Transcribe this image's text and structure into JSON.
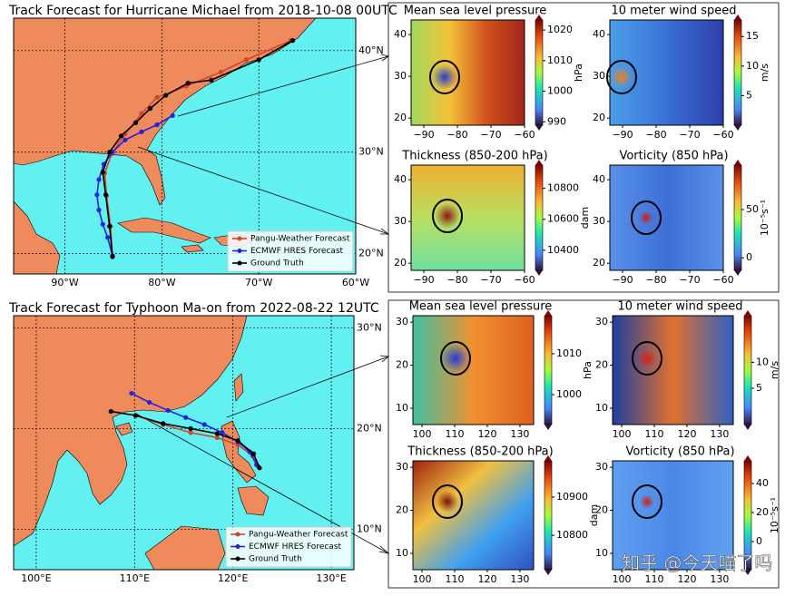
{
  "cases": [
    {
      "title": "Track Forecast for Hurricane Michael from 2018-10-08 00UTC",
      "map": {
        "xlim": [
          -95.3,
          -60
        ],
        "ylim": [
          18,
          43.2
        ],
        "xticks": [
          {
            "value": -90,
            "label": "90°W"
          },
          {
            "value": -80,
            "label": "80°W"
          },
          {
            "value": -70,
            "label": "70°W"
          },
          {
            "value": -60,
            "label": "60°W"
          }
        ],
        "yticks": [
          {
            "value": 40,
            "label": "40°N"
          },
          {
            "value": 30,
            "label": "30°N"
          },
          {
            "value": 20,
            "label": "20°N"
          }
        ],
        "legend": "lower right",
        "series": [
          {
            "name": "Pangu-Weather Forecast",
            "color": "#d2472a",
            "x": [
              -85.1,
              -85.3,
              -85.7,
              -85.9,
              -85.2,
              -83.8,
              -82.1,
              -80.5,
              -77.5,
              -73.9,
              -71.3,
              -66.7
            ],
            "y": [
              19.8,
              22.7,
              25.7,
              27.9,
              29.8,
              31.8,
              33.8,
              35.4,
              36.5,
              37.9,
              39.1,
              41.0
            ]
          },
          {
            "name": "ECMWF HRES Forecast",
            "color": "#2222e0",
            "x": [
              -85.1,
              -85.6,
              -86.1,
              -86.5,
              -86.7,
              -86.5,
              -86.0,
              -85.1,
              -83.8,
              -82.1,
              -80.5,
              -78.9
            ],
            "y": [
              19.8,
              21.6,
              22.9,
              24.3,
              25.8,
              27.3,
              28.8,
              30.0,
              31.2,
              32.0,
              32.7,
              33.6
            ]
          },
          {
            "name": "Ground Truth",
            "color": "#000000",
            "x": [
              -85.1,
              -85.4,
              -85.8,
              -86.1,
              -85.4,
              -84.2,
              -82.7,
              -81.2,
              -79.6,
              -77.3,
              -74.9,
              -70.0,
              -66.5
            ],
            "y": [
              19.7,
              22.7,
              25.8,
              28.0,
              30.0,
              31.6,
              32.9,
              34.3,
              35.6,
              36.8,
              37.1,
              39.1,
              41.0
            ]
          }
        ]
      },
      "fields": [
        {
          "title": "Mean sea level pressure",
          "xlim": [
            -93.8,
            -60
          ],
          "ylim": [
            18.3,
            43.5
          ],
          "xticks": [
            {
              "value": -90,
              "label": "−90"
            },
            {
              "value": -80,
              "label": "−80"
            },
            {
              "value": -70,
              "label": "−70"
            },
            {
              "value": -60,
              "label": "−60"
            }
          ],
          "yticks": [
            40,
            30,
            20
          ],
          "colorbar": {
            "label": "hPa",
            "clim": [
              988.9,
              1023.3
            ],
            "ticks": [
              1020,
              1010,
              1000,
              990
            ]
          }
        },
        {
          "title": "10 meter wind speed",
          "xlim": [
            -93.8,
            -60
          ],
          "ylim": [
            18.3,
            43.5
          ],
          "xticks": [
            {
              "value": -90,
              "label": "−90"
            },
            {
              "value": -80,
              "label": "−80"
            },
            {
              "value": -70,
              "label": "−70"
            },
            {
              "value": -60,
              "label": "−60"
            }
          ],
          "yticks": [
            40,
            30,
            20
          ],
          "colorbar": {
            "label": "m/s",
            "clim": [
              0,
              17.8
            ],
            "ticks": [
              15,
              10,
              5
            ]
          }
        },
        {
          "title": "Thickness (850-200 hPa)",
          "xlim": [
            -93.8,
            -60
          ],
          "ylim": [
            18.3,
            43.5
          ],
          "xticks": [
            {
              "value": -90,
              "label": "−90"
            },
            {
              "value": -80,
              "label": "−80"
            },
            {
              "value": -70,
              "label": "−70"
            },
            {
              "value": -60,
              "label": "−60"
            }
          ],
          "yticks": [
            40,
            30,
            20
          ],
          "colorbar": {
            "label": "dam",
            "clim": [
              10270,
              10950
            ],
            "ticks": [
              10800,
              10600,
              10400
            ]
          }
        },
        {
          "title": "Vorticity (850 hPa)",
          "xlim": [
            -93.8,
            -60
          ],
          "ylim": [
            18.3,
            43.5
          ],
          "xticks": [
            {
              "value": -90,
              "label": "−90"
            },
            {
              "value": -80,
              "label": "−80"
            },
            {
              "value": -70,
              "label": "−70"
            },
            {
              "value": -60,
              "label": "−60"
            }
          ],
          "yticks": [
            40,
            30,
            20
          ],
          "colorbar": {
            "label": "10⁻⁵s⁻¹",
            "clim": [
              -13,
              96
            ],
            "ticks": [
              50,
              0
            ]
          }
        }
      ]
    },
    {
      "title": "Track Forecast for Typhoon Ma-on from 2022-08-22 12UTC",
      "map": {
        "xlim": [
          97.7,
          132.3
        ],
        "ylim": [
          6,
          31.2
        ],
        "xticks": [
          {
            "value": 100,
            "label": "100°E"
          },
          {
            "value": 110,
            "label": "110°E"
          },
          {
            "value": 120,
            "label": "120°E"
          },
          {
            "value": 130,
            "label": "130°E"
          }
        ],
        "yticks": [
          {
            "value": 30,
            "label": "30°N"
          },
          {
            "value": 20,
            "label": "20°N"
          },
          {
            "value": 10,
            "label": "10°N"
          }
        ],
        "legend": "lower right",
        "series": [
          {
            "name": "Pangu-Weather Forecast",
            "color": "#d2472a",
            "x": [
              107.6,
              110.1,
              112.9,
              115.7,
              118.4,
              120.5,
              122.0,
              122.6
            ],
            "y": [
              21.7,
              21.3,
              20.4,
              19.6,
              19.1,
              18.4,
              17.3,
              16.2
            ]
          },
          {
            "name": "ECMWF HRES Forecast",
            "color": "#2222e0",
            "x": [
              109.7,
              111.5,
              113.4,
              115.2,
              117.1,
              118.9,
              120.5,
              121.7,
              122.4
            ],
            "y": [
              23.5,
              22.6,
              21.8,
              21.1,
              20.4,
              19.6,
              18.7,
              17.7,
              16.4
            ]
          },
          {
            "name": "Ground Truth",
            "color": "#000000",
            "x": [
              107.6,
              110.1,
              112.9,
              115.7,
              118.4,
              120.5,
              122.1,
              122.7
            ],
            "y": [
              21.7,
              21.3,
              20.5,
              20.0,
              19.5,
              18.8,
              17.5,
              16.1
            ]
          }
        ]
      },
      "fields": [
        {
          "title": "Mean sea level pressure",
          "xlim": [
            97.2,
            134.2
          ],
          "ylim": [
            6.2,
            31.5
          ],
          "xticks": [
            100,
            110,
            120,
            130
          ],
          "yticks": [
            30,
            20,
            10
          ],
          "colorbar": {
            "label": "hPa",
            "clim": [
              992.7,
              1019.3
            ],
            "ticks": [
              1010,
              1000
            ]
          }
        },
        {
          "title": "10 meter wind speed",
          "xlim": [
            97.2,
            134.2
          ],
          "ylim": [
            6.2,
            31.5
          ],
          "xticks": [
            100,
            110,
            120,
            130
          ],
          "yticks": [
            30,
            20,
            10
          ],
          "colorbar": {
            "label": "m/s",
            "clim": [
              -2,
              19
            ],
            "ticks": [
              10,
              5
            ]
          }
        },
        {
          "title": "Thickness (850-200 hPa)",
          "xlim": [
            97.2,
            134.2
          ],
          "ylim": [
            6.2,
            31.5
          ],
          "xticks": [
            100,
            110,
            120,
            130
          ],
          "yticks": [
            30,
            20,
            10
          ],
          "colorbar": {
            "label": "dam",
            "clim": [
              10710,
              10995
            ],
            "ticks": [
              10900,
              10800
            ]
          }
        },
        {
          "title": "Vorticity (850 hPa)",
          "xlim": [
            97.2,
            134.2
          ],
          "ylim": [
            6.2,
            31.5
          ],
          "xticks": [
            100,
            110,
            120,
            130
          ],
          "yticks": [
            30,
            20,
            10
          ],
          "colorbar": {
            "label": "10⁻⁵s⁻¹",
            "clim": [
              -19.4,
              55.6
            ],
            "ticks": [
              40,
              20,
              0
            ]
          }
        }
      ]
    }
  ],
  "watermark": "知乎 @今天喵了吗"
}
